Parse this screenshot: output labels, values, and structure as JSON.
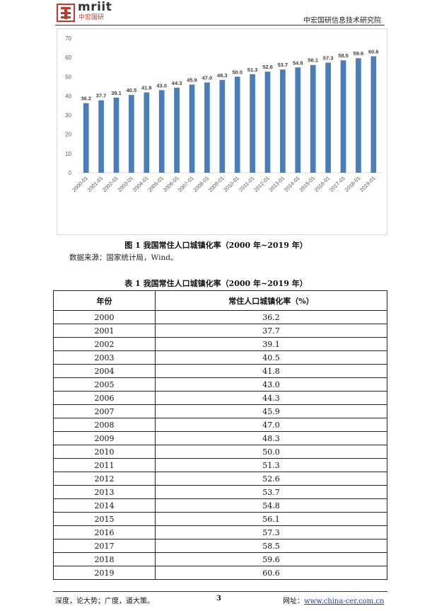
{
  "header": {
    "logo_text": "mriit",
    "logo_sub": "中宏国研",
    "org_name": "中宏国研信息技术研究院"
  },
  "chart_data": {
    "type": "bar",
    "categories": [
      "2000-01",
      "2001-01",
      "2002-01",
      "2003-01",
      "2004-01",
      "2005-01",
      "2006-01",
      "2007-01",
      "2008-01",
      "2009-01",
      "2010-01",
      "2011-01",
      "2012-01",
      "2013-01",
      "2014-01",
      "2015-01",
      "2016-01",
      "2017-01",
      "2018-01",
      "2019-01"
    ],
    "values": [
      36.2,
      37.7,
      39.1,
      40.5,
      41.8,
      43.0,
      44.3,
      45.9,
      47.0,
      48.3,
      50.0,
      51.3,
      52.6,
      53.7,
      54.8,
      56.1,
      57.3,
      58.5,
      59.6,
      60.6
    ],
    "value_labels": [
      "36.2",
      "37.7",
      "39.1",
      "40.5",
      "41.8",
      "43.0",
      "44.3",
      "45.9",
      "47.0",
      "48.3",
      "50.0",
      "51.3",
      "52.6",
      "53.7",
      "54.8",
      "56.1",
      "57.3",
      "58.5",
      "59.6",
      "60.6"
    ],
    "ylim": [
      0,
      70
    ],
    "yticks": [
      0,
      10,
      20,
      30,
      40,
      50,
      60,
      70
    ],
    "bar_color": "#4a7ebb",
    "grid": false,
    "title": "",
    "xlabel": "",
    "ylabel": ""
  },
  "figure_caption": "图 1  我国常住人口城镇化率（2000 年~2019 年）",
  "source_text": "数据来源：国家统计局，Wind。",
  "table": {
    "caption": "表 1   我国常住人口城镇化率（2000 年~2019 年）",
    "headers": [
      "年份",
      "常住人口城镇化率（%）"
    ],
    "rows": [
      [
        "2000",
        "36.2"
      ],
      [
        "2001",
        "37.7"
      ],
      [
        "2002",
        "39.1"
      ],
      [
        "2003",
        "40.5"
      ],
      [
        "2004",
        "41.8"
      ],
      [
        "2005",
        "43.0"
      ],
      [
        "2006",
        "44.3"
      ],
      [
        "2007",
        "45.9"
      ],
      [
        "2008",
        "47.0"
      ],
      [
        "2009",
        "48.3"
      ],
      [
        "2010",
        "50.0"
      ],
      [
        "2011",
        "51.3"
      ],
      [
        "2012",
        "52.6"
      ],
      [
        "2013",
        "53.7"
      ],
      [
        "2014",
        "54.8"
      ],
      [
        "2015",
        "56.1"
      ],
      [
        "2016",
        "57.3"
      ],
      [
        "2017",
        "58.5"
      ],
      [
        "2018",
        "59.6"
      ],
      [
        "2019",
        "60.6"
      ]
    ]
  },
  "footer": {
    "left": "深度，论大势；广度，道大策。",
    "page": "3",
    "url_label": "网址：",
    "url": "www.china-cer.com.cn"
  }
}
